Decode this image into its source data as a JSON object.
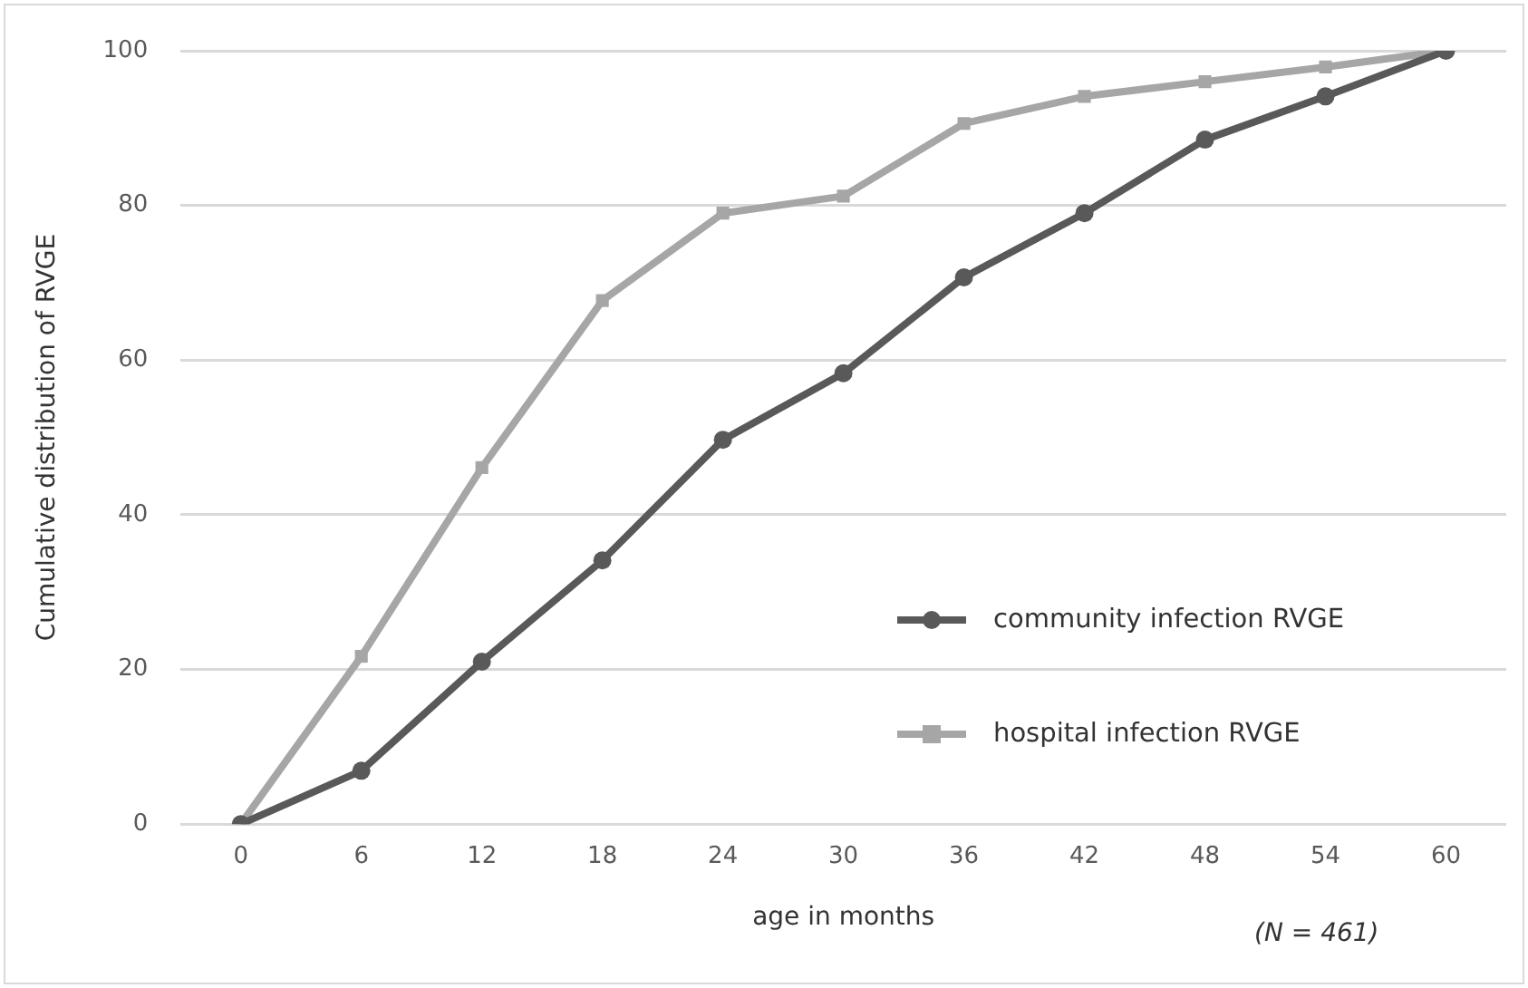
{
  "chart_data": {
    "type": "line",
    "xlabel": "age in months",
    "ylabel": "Cumulative distribution of RVGE",
    "categories": [
      "0",
      "6",
      "12",
      "18",
      "24",
      "30",
      "36",
      "42",
      "48",
      "54",
      "60"
    ],
    "series": [
      {
        "name": "community infection RVGE",
        "color": "#595959",
        "marker": "circle",
        "values": [
          0,
          6.9,
          21.0,
          34.1,
          49.7,
          58.3,
          70.7,
          79.0,
          88.5,
          94.1,
          100
        ]
      },
      {
        "name": "hospital infection RVGE",
        "color": "#a6a6a6",
        "marker": "square",
        "values": [
          0,
          21.7,
          46.1,
          67.7,
          79.0,
          81.2,
          90.6,
          94.1,
          96.0,
          97.9,
          100
        ]
      }
    ],
    "ylim": [
      0,
      100
    ],
    "yticks": [
      0,
      20,
      40,
      60,
      80,
      100
    ],
    "grid": "y",
    "legend": "right",
    "annotations": [
      "(N = 461)"
    ]
  }
}
